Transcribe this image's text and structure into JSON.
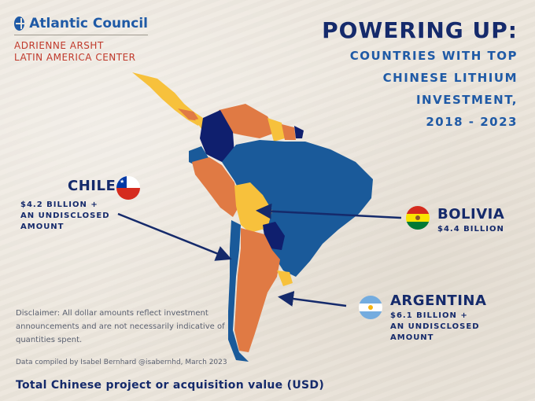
{
  "logo": {
    "name": "Atlantic Council",
    "sub_line1": "ADRIENNE ARSHT",
    "sub_line2": "LATIN AMERICA CENTER"
  },
  "title": {
    "main": "POWERING UP:",
    "lines": [
      "COUNTRIES WITH TOP",
      "CHINESE LITHIUM",
      "INVESTMENT,",
      "2018 - 2023"
    ]
  },
  "countries": {
    "chile": {
      "name": "CHILE",
      "amount_lines": [
        "$4.2 BILLION +",
        "AN UNDISCLOSED",
        "AMOUNT"
      ],
      "flag": "chile-flag"
    },
    "bolivia": {
      "name": "BOLIVIA",
      "amount_lines": [
        "$4.4 BILLION"
      ],
      "flag": "bolivia-flag"
    },
    "argentina": {
      "name": "ARGENTINA",
      "amount_lines": [
        "$6.1 BILLION +",
        "AN UNDISCLOSED",
        "AMOUNT"
      ],
      "flag": "argentina-flag"
    }
  },
  "disclaimer": "Disclaimer: All dollar amounts reflect investment announcements and are not necessarily indicative of quantities spent.",
  "credit": "Data compiled by Isabel Bernhard @isabernhd, March 2023",
  "footer": "Total Chinese project or acquisition value (USD)",
  "colors": {
    "navy": "#152a6b",
    "blue": "#1a5a9a",
    "orange": "#e07a44",
    "yellow": "#f7c13c",
    "dark": "#0f1f6e",
    "background": "#ece6dc"
  }
}
